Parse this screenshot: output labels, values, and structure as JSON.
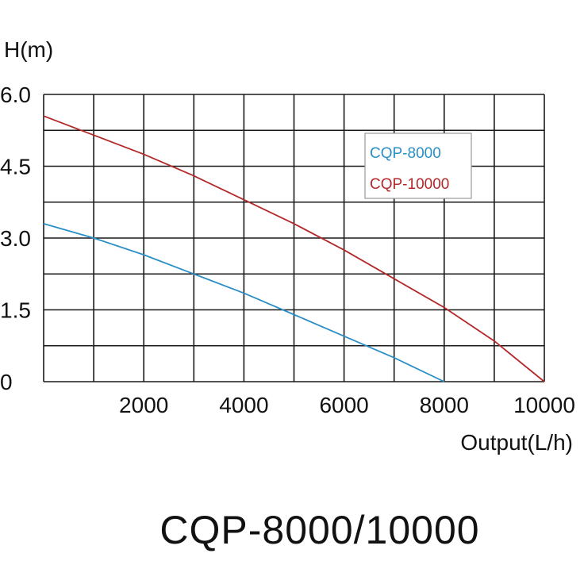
{
  "chart_data": {
    "type": "line",
    "title": "CQP-8000/10000",
    "xlabel": "Output(L/h)",
    "ylabel": "H(m)",
    "xlim": [
      0,
      10000
    ],
    "ylim": [
      0,
      6.0
    ],
    "x_gridlines": [
      0,
      1000,
      2000,
      3000,
      4000,
      5000,
      6000,
      7000,
      8000,
      9000,
      10000
    ],
    "y_gridlines": [
      0,
      0.75,
      1.5,
      2.25,
      3.0,
      3.75,
      4.5,
      5.25,
      6.0
    ],
    "x_ticks": [
      {
        "value": 2000,
        "label": "2000"
      },
      {
        "value": 4000,
        "label": "4000"
      },
      {
        "value": 6000,
        "label": "6000"
      },
      {
        "value": 8000,
        "label": "8000"
      },
      {
        "value": 10000,
        "label": "10000"
      }
    ],
    "y_ticks": [
      {
        "value": 0,
        "label": "0"
      },
      {
        "value": 1.5,
        "label": "1.5"
      },
      {
        "value": 3.0,
        "label": "3.0"
      },
      {
        "value": 4.5,
        "label": "4.5"
      },
      {
        "value": 6.0,
        "label": "6.0"
      }
    ],
    "grid": true,
    "legend_position": "top-right",
    "series": [
      {
        "name": "CQP-8000",
        "color": "#2a8fc6",
        "points": [
          [
            0,
            3.3
          ],
          [
            1000,
            3.0
          ],
          [
            2000,
            2.65
          ],
          [
            3000,
            2.25
          ],
          [
            4000,
            1.85
          ],
          [
            5000,
            1.4
          ],
          [
            6000,
            0.95
          ],
          [
            7000,
            0.5
          ],
          [
            8000,
            0.0
          ]
        ]
      },
      {
        "name": "CQP-10000",
        "color": "#b32828",
        "points": [
          [
            0,
            5.55
          ],
          [
            1000,
            5.15
          ],
          [
            2000,
            4.75
          ],
          [
            3000,
            4.3
          ],
          [
            4000,
            3.8
          ],
          [
            5000,
            3.3
          ],
          [
            6000,
            2.75
          ],
          [
            7000,
            2.15
          ],
          [
            8000,
            1.55
          ],
          [
            9000,
            0.85
          ],
          [
            10000,
            0.0
          ]
        ]
      }
    ]
  }
}
